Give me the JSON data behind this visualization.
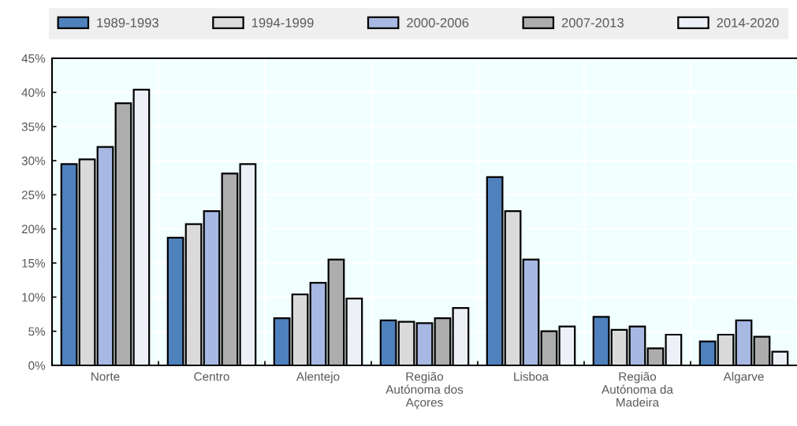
{
  "chart_data": {
    "type": "bar",
    "categories": [
      "Norte",
      "Centro",
      "Alentejo",
      "Região\nAutónoma dos\nAçores",
      "Lisboa",
      "Região\nAutónoma da\nMadeira",
      "Algarve"
    ],
    "series": [
      {
        "name": "1989-1993",
        "color": "#4f81bd",
        "values": [
          29.5,
          18.7,
          6.9,
          6.6,
          27.6,
          7.1,
          3.5
        ]
      },
      {
        "name": "1994-1999",
        "color": "#dadada",
        "values": [
          30.2,
          20.7,
          10.4,
          6.4,
          22.6,
          5.2,
          4.5
        ]
      },
      {
        "name": "2000-2006",
        "color": "#a7b8e2",
        "values": [
          32.0,
          22.6,
          12.1,
          6.2,
          15.5,
          5.7,
          6.6
        ]
      },
      {
        "name": "2007-2013",
        "color": "#adadad",
        "values": [
          38.4,
          28.1,
          15.5,
          6.9,
          5.0,
          2.5,
          4.2
        ]
      },
      {
        "name": "2014-2020",
        "color": "#eef0f8",
        "values": [
          40.4,
          29.5,
          9.8,
          8.4,
          5.7,
          4.5,
          2.0
        ]
      }
    ],
    "ylim": [
      0,
      45
    ],
    "yticks": [
      {
        "value": 0,
        "label": "0%"
      },
      {
        "value": 5,
        "label": "5%"
      },
      {
        "value": 10,
        "label": "10%"
      },
      {
        "value": 15,
        "label": "15%"
      },
      {
        "value": 20,
        "label": "20%"
      },
      {
        "value": 25,
        "label": "25%"
      },
      {
        "value": 30,
        "label": "30%"
      },
      {
        "value": 35,
        "label": "35%"
      },
      {
        "value": 40,
        "label": "40%"
      },
      {
        "value": 45,
        "label": "45%"
      }
    ],
    "grid": true,
    "legend": "top"
  }
}
